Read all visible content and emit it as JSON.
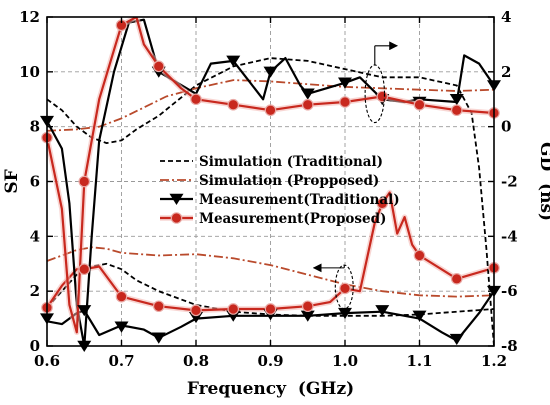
{
  "chart_data": {
    "type": "line",
    "xlabel": "Frequency  (GHz)",
    "ylabel_left": "SF",
    "ylabel_right": "GD  (ns)",
    "xlim": [
      0.6,
      1.2
    ],
    "ylim_left": [
      0,
      12
    ],
    "ylim_right": [
      -8,
      4
    ],
    "x_ticks": [
      "0.6",
      "0.7",
      "0.8",
      "0.9",
      "1.0",
      "1.1",
      "1.2"
    ],
    "y_ticks_left": [
      "0",
      "2",
      "4",
      "6",
      "8",
      "10",
      "12"
    ],
    "y_ticks_right": [
      "-8",
      "-6",
      "-4",
      "-2",
      "0",
      "2",
      "4"
    ],
    "grid": "dashed",
    "legend": [
      {
        "label": "Simulation (Traditional)",
        "series": "sim_trad_sf"
      },
      {
        "label": "Simulation (Propposed)",
        "series": "sim_prop_sf"
      },
      {
        "label": "Measurement(Traditional)",
        "series": "meas_trad_sf"
      },
      {
        "label": "Measurement(Proposed)",
        "series": "meas_prop_sf"
      }
    ],
    "series": [
      {
        "id": "sim_trad_sf",
        "axis": "left",
        "color": "#000000",
        "style": "dash",
        "marker": "none",
        "x": [
          0.6,
          0.62,
          0.64,
          0.66,
          0.68,
          0.7,
          0.72,
          0.75,
          0.8,
          0.85,
          0.9,
          0.95,
          1.0,
          1.05,
          1.1,
          1.15,
          1.2
        ],
        "y": [
          1.4,
          2.0,
          2.6,
          2.9,
          3.0,
          2.8,
          2.4,
          2.0,
          1.5,
          1.25,
          1.15,
          1.1,
          1.1,
          1.1,
          1.15,
          1.25,
          1.35
        ]
      },
      {
        "id": "sim_prop_sf",
        "axis": "left",
        "color": "#b94a2c",
        "style": "dashdot",
        "marker": "none",
        "x": [
          0.6,
          0.62,
          0.64,
          0.66,
          0.68,
          0.7,
          0.75,
          0.8,
          0.85,
          0.9,
          0.95,
          1.0,
          1.05,
          1.1,
          1.15,
          1.2
        ],
        "y": [
          3.1,
          3.3,
          3.5,
          3.6,
          3.55,
          3.4,
          3.3,
          3.35,
          3.2,
          2.95,
          2.6,
          2.25,
          2.0,
          1.85,
          1.8,
          1.85
        ]
      },
      {
        "id": "meas_trad_sf",
        "axis": "left",
        "color": "#000000",
        "style": "solid",
        "marker": "triangle-down",
        "x": [
          0.6,
          0.62,
          0.64,
          0.65,
          0.67,
          0.7,
          0.73,
          0.75,
          0.78,
          0.8,
          0.85,
          0.9,
          0.95,
          1.0,
          1.05,
          1.1,
          1.13,
          1.15,
          1.18,
          1.2
        ],
        "y": [
          0.9,
          0.8,
          1.2,
          1.3,
          0.4,
          0.75,
          0.6,
          0.3,
          0.7,
          1.0,
          1.1,
          1.1,
          1.1,
          1.2,
          1.25,
          1.0,
          0.5,
          0.2,
          1.2,
          2.0
        ],
        "markers": [
          [
            0.6,
            1.0
          ],
          [
            0.65,
            1.3
          ],
          [
            0.7,
            0.7
          ],
          [
            0.75,
            0.3
          ],
          [
            0.8,
            1.05
          ],
          [
            0.85,
            1.1
          ],
          [
            0.9,
            1.15
          ],
          [
            0.95,
            1.1
          ],
          [
            1.0,
            1.2
          ],
          [
            1.05,
            1.3
          ],
          [
            1.1,
            1.1
          ],
          [
            1.15,
            0.25
          ],
          [
            1.2,
            2.0
          ]
        ]
      },
      {
        "id": "meas_prop_sf",
        "axis": "left",
        "color": "#c8281e",
        "style": "solid",
        "marker": "circle",
        "x": [
          0.6,
          0.62,
          0.64,
          0.65,
          0.67,
          0.7,
          0.75,
          0.8,
          0.85,
          0.9,
          0.95,
          0.98,
          1.0,
          1.02,
          1.04,
          1.05,
          1.06,
          1.07,
          1.08,
          1.09,
          1.1,
          1.15,
          1.2
        ],
        "y": [
          1.4,
          2.2,
          2.8,
          2.8,
          2.9,
          1.8,
          1.45,
          1.3,
          1.35,
          1.35,
          1.45,
          1.6,
          2.1,
          2.0,
          4.5,
          5.2,
          5.6,
          4.1,
          4.7,
          3.7,
          3.3,
          2.45,
          2.85
        ],
        "markers": [
          [
            0.6,
            1.4
          ],
          [
            0.65,
            2.8
          ],
          [
            0.7,
            1.8
          ],
          [
            0.75,
            1.45
          ],
          [
            0.8,
            1.3
          ],
          [
            0.85,
            1.35
          ],
          [
            0.9,
            1.35
          ],
          [
            0.95,
            1.45
          ],
          [
            1.0,
            2.1
          ],
          [
            1.05,
            5.2
          ],
          [
            1.1,
            3.3
          ],
          [
            1.15,
            2.45
          ],
          [
            1.2,
            2.85
          ]
        ]
      },
      {
        "id": "sim_trad_gd",
        "axis": "right",
        "color": "#000000",
        "style": "dash",
        "marker": "none",
        "x": [
          0.6,
          0.62,
          0.64,
          0.66,
          0.68,
          0.7,
          0.72,
          0.75,
          0.8,
          0.85,
          0.9,
          0.95,
          1.0,
          1.05,
          1.1,
          1.15,
          1.17,
          1.18,
          1.19,
          1.2
        ],
        "y": [
          1.0,
          0.6,
          0.0,
          -0.4,
          -0.6,
          -0.5,
          -0.1,
          0.4,
          1.5,
          2.2,
          2.5,
          2.4,
          2.1,
          1.8,
          1.8,
          1.5,
          0.5,
          -1.5,
          -4.5,
          -8.0
        ]
      },
      {
        "id": "sim_prop_gd",
        "axis": "right",
        "color": "#b94a2c",
        "style": "dashdot",
        "marker": "none",
        "x": [
          0.6,
          0.64,
          0.67,
          0.7,
          0.73,
          0.76,
          0.8,
          0.85,
          0.9,
          0.95,
          1.0,
          1.05,
          1.1,
          1.15,
          1.2
        ],
        "y": [
          -0.15,
          -0.1,
          0.0,
          0.3,
          0.7,
          1.1,
          1.4,
          1.7,
          1.65,
          1.55,
          1.45,
          1.4,
          1.35,
          1.3,
          1.35
        ]
      },
      {
        "id": "meas_trad_gd",
        "axis": "right",
        "color": "#000000",
        "style": "solid",
        "marker": "triangle-down",
        "x": [
          0.6,
          0.62,
          0.63,
          0.64,
          0.65,
          0.66,
          0.67,
          0.69,
          0.71,
          0.73,
          0.75,
          0.8,
          0.82,
          0.85,
          0.87,
          0.89,
          0.9,
          0.92,
          0.94,
          0.95,
          1.0,
          1.02,
          1.05,
          1.08,
          1.1,
          1.15,
          1.16,
          1.18,
          1.2
        ],
        "y": [
          0.2,
          -0.8,
          -2.8,
          -6.5,
          -8.0,
          -4.0,
          -0.5,
          2.0,
          3.8,
          3.9,
          2.0,
          1.2,
          2.3,
          2.4,
          1.7,
          1.0,
          2.0,
          2.5,
          1.5,
          1.2,
          1.6,
          1.8,
          1.0,
          0.9,
          1.0,
          0.9,
          2.6,
          2.3,
          1.5
        ],
        "markers": [
          [
            0.6,
            0.2
          ],
          [
            0.65,
            -8.0
          ],
          [
            0.75,
            2.0
          ],
          [
            0.85,
            2.4
          ],
          [
            0.9,
            2.0
          ],
          [
            0.95,
            1.2
          ],
          [
            1.0,
            1.6
          ],
          [
            1.05,
            1.0
          ],
          [
            1.1,
            0.9
          ],
          [
            1.15,
            1.0
          ],
          [
            1.2,
            1.5
          ]
        ]
      },
      {
        "id": "meas_prop_gd",
        "axis": "right",
        "color": "#c8281e",
        "style": "solid",
        "marker": "circle",
        "x": [
          0.6,
          0.62,
          0.63,
          0.64,
          0.65,
          0.67,
          0.69,
          0.7,
          0.72,
          0.73,
          0.75,
          0.78,
          0.8,
          0.85,
          0.9,
          0.95,
          1.0,
          1.05,
          1.1,
          1.15,
          1.2
        ],
        "y": [
          -0.4,
          -3.0,
          -6.5,
          -7.5,
          -2.0,
          1.0,
          2.8,
          3.7,
          4.0,
          3.0,
          2.2,
          1.4,
          1.0,
          0.8,
          0.6,
          0.8,
          0.9,
          1.1,
          0.8,
          0.6,
          0.5
        ],
        "markers": [
          [
            0.6,
            -0.4
          ],
          [
            0.65,
            -2.0
          ],
          [
            0.7,
            3.7
          ],
          [
            0.75,
            2.2
          ],
          [
            0.8,
            1.0
          ],
          [
            0.85,
            0.8
          ],
          [
            0.9,
            0.6
          ],
          [
            0.95,
            0.8
          ],
          [
            1.0,
            0.9
          ],
          [
            1.05,
            1.1
          ],
          [
            1.1,
            0.8
          ],
          [
            1.15,
            0.6
          ],
          [
            1.2,
            0.5
          ]
        ]
      }
    ],
    "annotations": [
      {
        "type": "ellipse",
        "center": [
          1.04,
          9.2
        ],
        "radius": [
          0.013,
          1.05
        ],
        "meaning": "upper group-delay curves marked, pointing to the right (GD) axis"
      },
      {
        "type": "ellipse",
        "center": [
          0.999,
          2.15
        ],
        "radius": [
          0.012,
          0.8
        ],
        "meaning": "lower shape-factor curves marked, pointing to the left (SF) axis"
      }
    ]
  }
}
